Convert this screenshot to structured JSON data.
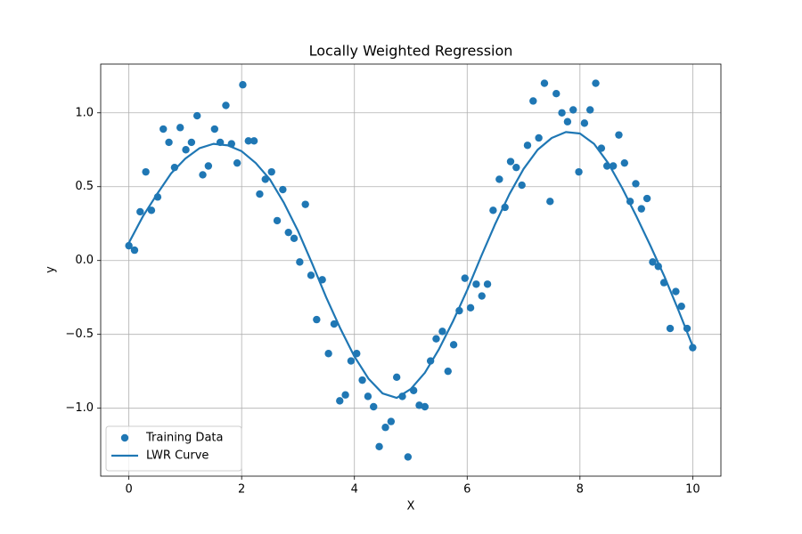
{
  "chart_data": {
    "type": "scatter",
    "title": "Locally Weighted Regression",
    "x_label": "X",
    "y_label": "y",
    "xlim": [
      -0.5,
      10.5
    ],
    "ylim": [
      -1.46,
      1.33
    ],
    "xticks": [
      0,
      2,
      4,
      6,
      8,
      10
    ],
    "yticks": [
      {
        "value": -1,
        "label": "−1.0"
      },
      {
        "value": -0.5,
        "label": "−0.5"
      },
      {
        "value": 0,
        "label": "0.0"
      },
      0.5,
      {
        "value": 1,
        "label": "1.0"
      }
    ],
    "grid": true,
    "legend": "lower left",
    "series": [
      {
        "name": "Training Data",
        "type": "scatter",
        "color": "#1f77b4",
        "x": [
          0,
          0.1,
          0.2,
          0.3,
          0.4,
          0.51,
          0.61,
          0.71,
          0.81,
          0.91,
          1.01,
          1.11,
          1.21,
          1.31,
          1.41,
          1.52,
          1.62,
          1.72,
          1.82,
          1.92,
          2.02,
          2.12,
          2.22,
          2.32,
          2.42,
          2.53,
          2.63,
          2.73,
          2.83,
          2.93,
          3.03,
          3.13,
          3.23,
          3.33,
          3.43,
          3.54,
          3.64,
          3.74,
          3.84,
          3.94,
          4.04,
          4.14,
          4.24,
          4.34,
          4.44,
          4.55,
          4.65,
          4.75,
          4.85,
          4.95,
          5.05,
          5.15,
          5.25,
          5.35,
          5.45,
          5.56,
          5.66,
          5.76,
          5.86,
          5.96,
          6.06,
          6.16,
          6.26,
          6.36,
          6.46,
          6.57,
          6.67,
          6.77,
          6.87,
          6.97,
          7.07,
          7.17,
          7.27,
          7.37,
          7.47,
          7.58,
          7.68,
          7.78,
          7.88,
          7.98,
          8.08,
          8.18,
          8.28,
          8.38,
          8.48,
          8.59,
          8.69,
          8.79,
          8.89,
          8.99,
          9.09,
          9.19,
          9.29,
          9.39,
          9.49,
          9.6,
          9.7,
          9.8,
          9.9,
          10
        ],
        "values": [
          0.1,
          0.07,
          0.33,
          0.6,
          0.34,
          0.43,
          0.89,
          0.8,
          0.63,
          0.9,
          0.75,
          0.8,
          0.98,
          0.58,
          0.64,
          0.89,
          0.8,
          1.05,
          0.79,
          0.66,
          1.19,
          0.81,
          0.81,
          0.45,
          0.55,
          0.6,
          0.27,
          0.48,
          0.19,
          0.15,
          -0.01,
          0.38,
          -0.1,
          -0.4,
          -0.13,
          -0.63,
          -0.43,
          -0.95,
          -0.91,
          -0.68,
          -0.63,
          -0.81,
          -0.92,
          -0.99,
          -1.26,
          -1.13,
          -1.09,
          -0.79,
          -0.92,
          -1.33,
          -0.88,
          -0.98,
          -0.99,
          -0.68,
          -0.53,
          -0.48,
          -0.75,
          -0.57,
          -0.34,
          -0.12,
          -0.32,
          -0.16,
          -0.24,
          -0.16,
          0.34,
          0.55,
          0.36,
          0.67,
          0.63,
          0.51,
          0.78,
          1.08,
          0.83,
          1.2,
          0.4,
          1.13,
          1,
          0.94,
          1.02,
          0.6,
          0.93,
          1.02,
          1.2,
          0.76,
          0.64,
          0.64,
          0.85,
          0.66,
          0.4,
          0.52,
          0.35,
          0.42,
          -0.01,
          -0.04,
          -0.15,
          -0.46,
          -0.21,
          -0.31,
          -0.46,
          -0.59
        ]
      },
      {
        "name": "LWR Curve",
        "type": "line",
        "color": "#1f77b4",
        "x": [
          0,
          0.25,
          0.5,
          0.75,
          1,
          1.25,
          1.5,
          1.75,
          2,
          2.25,
          2.5,
          2.75,
          3,
          3.25,
          3.5,
          3.75,
          4,
          4.25,
          4.5,
          4.75,
          5,
          5.25,
          5.5,
          5.75,
          6,
          6.25,
          6.5,
          6.75,
          7,
          7.25,
          7.5,
          7.75,
          8,
          8.25,
          8.5,
          8.75,
          9,
          9.25,
          9.5,
          9.75,
          10
        ],
        "values": [
          0.12,
          0.3,
          0.45,
          0.59,
          0.69,
          0.76,
          0.79,
          0.78,
          0.74,
          0.66,
          0.55,
          0.39,
          0.2,
          -0.02,
          -0.25,
          -0.46,
          -0.65,
          -0.8,
          -0.9,
          -0.93,
          -0.87,
          -0.76,
          -0.6,
          -0.41,
          -0.2,
          0.03,
          0.25,
          0.45,
          0.62,
          0.75,
          0.83,
          0.87,
          0.86,
          0.79,
          0.66,
          0.49,
          0.3,
          0.1,
          -0.11,
          -0.34,
          -0.58
        ]
      }
    ]
  }
}
